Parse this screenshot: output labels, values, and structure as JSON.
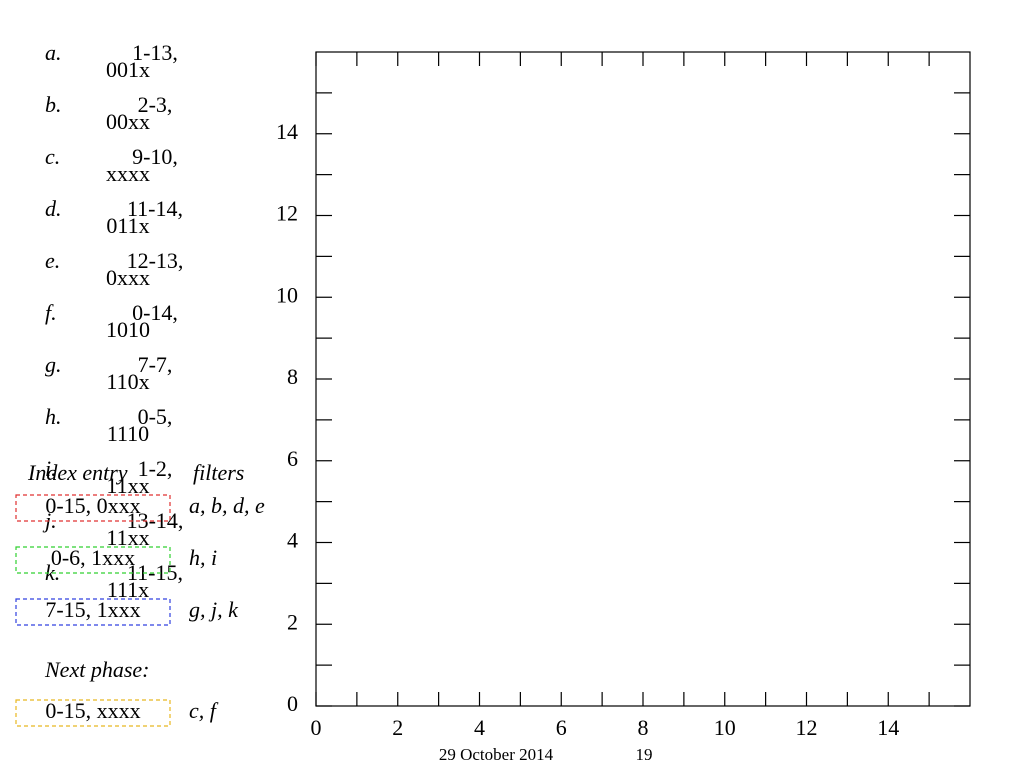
{
  "items": [
    {
      "letter": "a.",
      "range": "1-13,",
      "mask": "001x"
    },
    {
      "letter": "b.",
      "range": "2-3,",
      "mask": "00xx"
    },
    {
      "letter": "c.",
      "range": "9-10,",
      "mask": "xxxx"
    },
    {
      "letter": "d.",
      "range": "11-14,",
      "mask": "011x"
    },
    {
      "letter": "e.",
      "range": "12-13,",
      "mask": "0xxx"
    },
    {
      "letter": "f.",
      "range": "0-14,",
      "mask": "1010"
    },
    {
      "letter": "g.",
      "range": "7-7,",
      "mask": "110x"
    },
    {
      "letter": "h.",
      "range": "0-5,",
      "mask": "1110"
    },
    {
      "letter": "i.",
      "range": "1-2,",
      "mask": "11xx"
    },
    {
      "letter": "j.",
      "range": "13-14,",
      "mask": "11xx"
    },
    {
      "letter": "k.",
      "range": "11-15,",
      "mask": "111x"
    }
  ],
  "index_header": {
    "entry": "Index entry",
    "filters": "filters"
  },
  "index_entries": [
    {
      "entry": "0-15, 0xxx",
      "filters": "a, b, d, e",
      "color": "#e03030"
    },
    {
      "entry": "0-6, 1xxx",
      "filters": "h, i",
      "color": "#30d030"
    },
    {
      "entry": "7-15, 1xxx",
      "filters": "g, j, k",
      "color": "#3040e0"
    }
  ],
  "next_phase": {
    "label": "Next phase:",
    "entry": "0-15, xxxx",
    "filters": "c, f",
    "color": "#e8b820"
  },
  "footer": {
    "date": "29 October 2014",
    "page": "19"
  },
  "chart_data": {
    "type": "scatter",
    "xlim": [
      0,
      16
    ],
    "ylim": [
      0,
      16
    ],
    "xticks": [
      0,
      2,
      4,
      6,
      8,
      10,
      12,
      14
    ],
    "yticks": [
      0,
      2,
      4,
      6,
      8,
      10,
      12,
      14
    ],
    "xminorticks": [
      1,
      3,
      5,
      7,
      9,
      11,
      13,
      15
    ],
    "yminorticks": [
      1,
      3,
      5,
      7,
      9,
      11,
      13,
      15
    ]
  }
}
